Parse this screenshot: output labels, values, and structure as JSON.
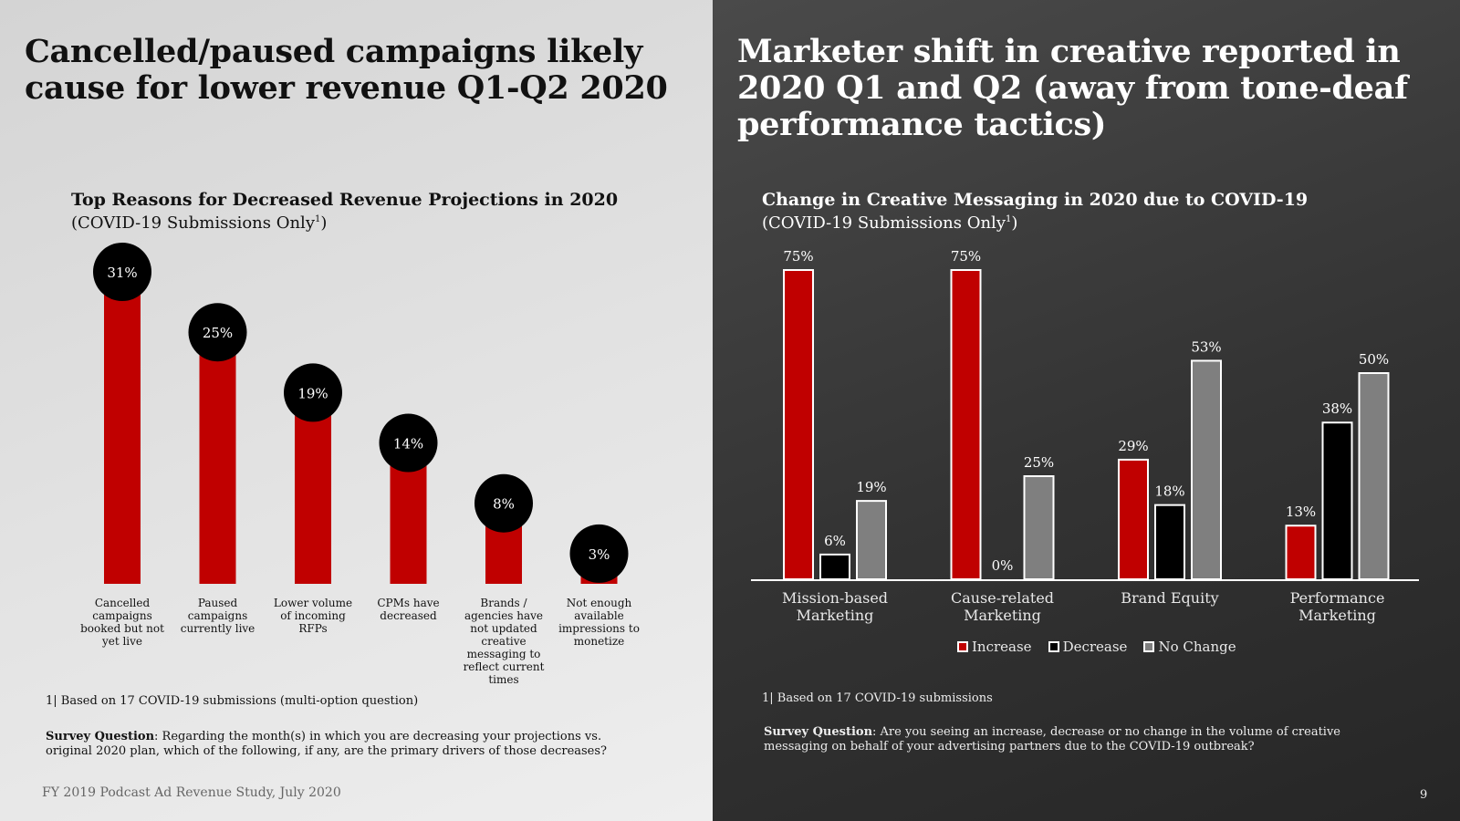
{
  "left": {
    "title": "Cancelled/paused campaigns likely cause for lower revenue Q1-Q2 2020",
    "chart_title": "Top Reasons for Decreased Revenue Projections in 2020",
    "chart_subtitle_text": "(COVID-19 Submissions Only",
    "chart_subtitle_sup": "1",
    "chart_subtitle_end": ")",
    "footnote": "1| Based on 17 COVID-19 submissions (multi-option question)",
    "survey_label": "Survey Question",
    "survey_text": ": Regarding the month(s) in which you are decreasing your projections vs. original 2020 plan, which of the following, if any, are the primary drivers of those decreases?",
    "source": "FY 2019 Podcast Ad Revenue Study, July 2020"
  },
  "right": {
    "title": "Marketer shift in creative reported in 2020 Q1 and Q2 (away from tone-deaf performance tactics)",
    "chart_title": "Change in Creative Messaging in 2020 due to COVID-19",
    "chart_subtitle_text": "(COVID-19 Submissions Only",
    "chart_subtitle_sup": "1",
    "chart_subtitle_end": ")",
    "footnote": "1| Based on 17 COVID-19 submissions",
    "survey_label": "Survey Question",
    "survey_text": ": Are you seeing an increase, decrease or no change in the volume of creative messaging on behalf of your advertising partners due to the COVID-19 outbreak?",
    "page_number": "9"
  },
  "colors": {
    "red": "#c00000",
    "black": "#000000",
    "gray": "#7f7f7f"
  },
  "chart_data": [
    {
      "type": "bar",
      "title": "Top Reasons for Decreased Revenue Projections in 2020",
      "subtitle": "(COVID-19 Submissions Only1)",
      "categories": [
        "Cancelled campaigns booked but not yet live",
        "Paused campaigns currently live",
        "Lower volume of incoming RFPs",
        "CPMs have decreased",
        "Brands / agencies have not updated creative messaging to reflect current times",
        "Not enough available impressions to monetize"
      ],
      "values": [
        31,
        25,
        19,
        14,
        8,
        3
      ],
      "labels": [
        "31%",
        "25%",
        "19%",
        "14%",
        "8%",
        "3%"
      ],
      "unit": "%",
      "ylim": [
        0,
        31
      ]
    },
    {
      "type": "bar",
      "title": "Change in Creative Messaging in 2020 due to COVID-19",
      "subtitle": "(COVID-19 Submissions Only1)",
      "categories": [
        "Mission-based Marketing",
        "Cause-related Marketing",
        "Brand Equity",
        "Performance Marketing"
      ],
      "series": [
        {
          "name": "Increase",
          "values": [
            75,
            75,
            29,
            13
          ],
          "labels": [
            "75%",
            "75%",
            "29%",
            "13%"
          ]
        },
        {
          "name": "Decrease",
          "values": [
            6,
            0,
            18,
            38
          ],
          "labels": [
            "6%",
            "0%",
            "18%",
            "38%"
          ]
        },
        {
          "name": "No Change",
          "values": [
            19,
            25,
            53,
            50
          ],
          "labels": [
            "19%",
            "25%",
            "53%",
            "50%"
          ]
        }
      ],
      "unit": "%",
      "legend": "bottom",
      "ylim": [
        0,
        75
      ]
    }
  ]
}
